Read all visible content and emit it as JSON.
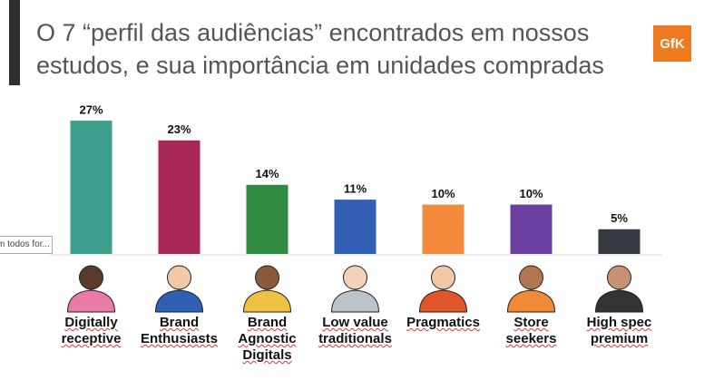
{
  "header": {
    "title": "O 7 “perfil das audiências” encontrados em nossos estudos, e sua importância em unidades compradas",
    "logo": "GfK"
  },
  "tooltip": "m todos for...",
  "chart_data": {
    "type": "bar",
    "categories": [
      [
        "Digitally",
        "receptive"
      ],
      [
        "Brand",
        "Enthusiasts"
      ],
      [
        "Brand",
        "Agnostic",
        "Digitals"
      ],
      [
        "Low value",
        "traditionals"
      ],
      [
        "Pragmatics"
      ],
      [
        "Store",
        "seekers"
      ],
      [
        "High spec",
        "premium"
      ]
    ],
    "values": [
      27,
      23,
      14,
      11,
      10,
      10,
      5
    ],
    "value_labels": [
      "27%",
      "23%",
      "14%",
      "11%",
      "10%",
      "10%",
      "5%"
    ],
    "colors": [
      "#3f9f8f",
      "#a8285a",
      "#2d8a3e",
      "#3160b4",
      "#f28a3a",
      "#6b40a2",
      "#343a40"
    ],
    "ylim": [
      0,
      27
    ]
  }
}
